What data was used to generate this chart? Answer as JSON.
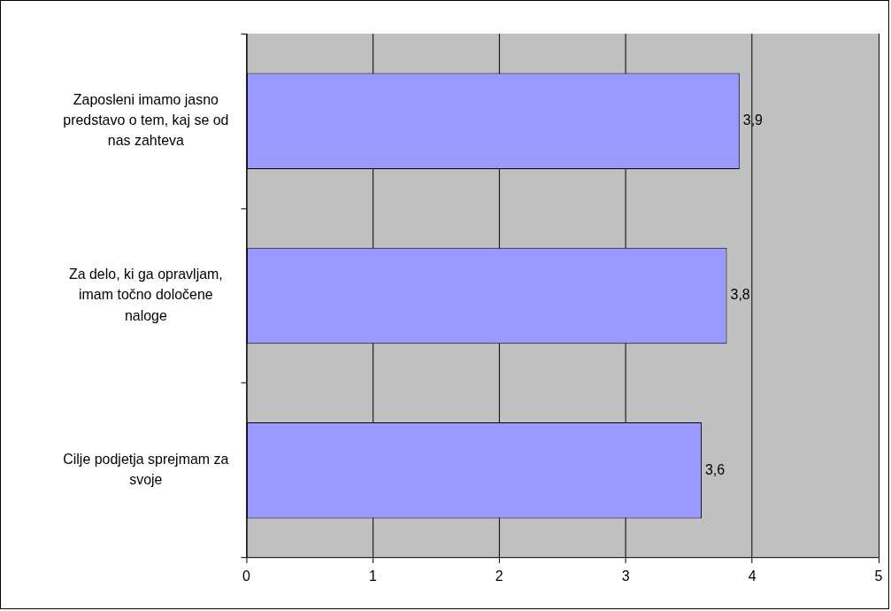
{
  "chart_data": {
    "type": "bar",
    "orientation": "horizontal",
    "categories": [
      "Zaposleni imamo jasno predstavo o tem, kaj se od nas zahteva",
      "Za delo, ki ga opravljam, imam točno določene naloge",
      "Cilje podjetja sprejmam za svoje"
    ],
    "values": [
      3.9,
      3.8,
      3.6
    ],
    "color": "#9999ff",
    "value_labels": [
      "3,9",
      "3,8",
      "3,6"
    ],
    "xlim": [
      0,
      5
    ],
    "xticks": [
      0,
      1,
      2,
      3,
      4,
      5
    ],
    "grid": "x",
    "legend": false
  }
}
